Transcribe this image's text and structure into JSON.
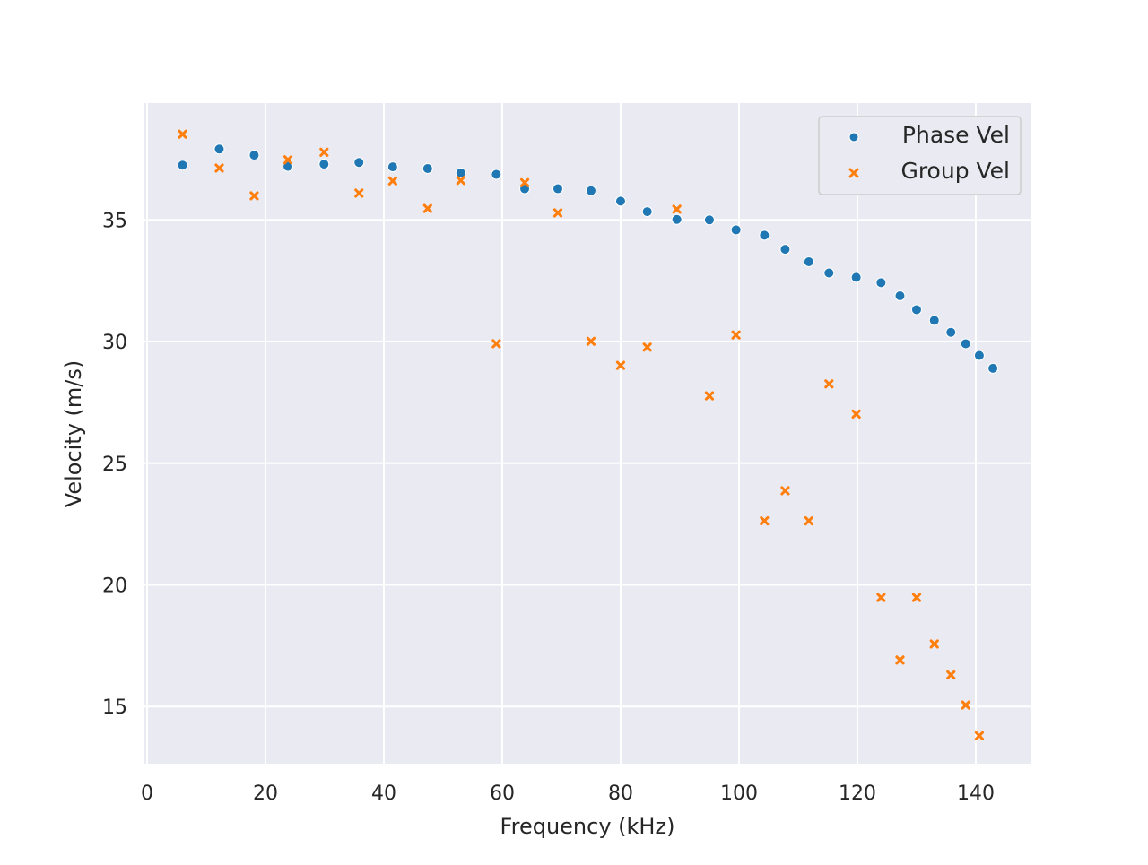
{
  "chart_data": {
    "type": "scatter",
    "title": "",
    "xlabel": "Frequency (kHz)",
    "ylabel": "Velocity (m/s)",
    "xlim": [
      -0.6,
      149.4
    ],
    "ylim": [
      12.65,
      39.8
    ],
    "xticks": [
      0,
      20,
      40,
      60,
      80,
      100,
      120,
      140
    ],
    "yticks": [
      15,
      20,
      25,
      30,
      35
    ],
    "grid": true,
    "legend_position": "top-right",
    "colors": {
      "background": "#eaeaf2",
      "grid": "#ffffff",
      "phase": "#1f77b4",
      "group": "#ff7f0e"
    },
    "series": [
      {
        "name": "Phase Vel",
        "marker": "circle",
        "color": "#1f77b4",
        "points": [
          [
            6.0,
            37.25
          ],
          [
            12.2,
            37.91
          ],
          [
            18.1,
            37.66
          ],
          [
            23.8,
            37.2
          ],
          [
            29.9,
            37.29
          ],
          [
            35.8,
            37.36
          ],
          [
            41.5,
            37.18
          ],
          [
            47.4,
            37.11
          ],
          [
            53.0,
            36.93
          ],
          [
            59.0,
            36.87
          ],
          [
            63.8,
            36.28
          ],
          [
            69.4,
            36.28
          ],
          [
            75.0,
            36.2
          ],
          [
            80.0,
            35.77
          ],
          [
            84.5,
            35.34
          ],
          [
            89.5,
            35.02
          ],
          [
            95.0,
            35.0
          ],
          [
            99.5,
            34.59
          ],
          [
            104.3,
            34.37
          ],
          [
            107.8,
            33.79
          ],
          [
            111.8,
            33.28
          ],
          [
            115.2,
            32.82
          ],
          [
            119.8,
            32.64
          ],
          [
            124.0,
            32.42
          ],
          [
            127.2,
            31.88
          ],
          [
            130.0,
            31.31
          ],
          [
            133.0,
            30.87
          ],
          [
            135.8,
            30.38
          ],
          [
            138.3,
            29.91
          ],
          [
            140.6,
            29.43
          ],
          [
            142.9,
            28.9
          ]
        ]
      },
      {
        "name": "Group Vel",
        "marker": "x",
        "color": "#ff7f0e",
        "points": [
          [
            6.0,
            38.52
          ],
          [
            12.2,
            37.13
          ],
          [
            18.1,
            35.99
          ],
          [
            23.8,
            37.47
          ],
          [
            29.9,
            37.78
          ],
          [
            35.8,
            36.1
          ],
          [
            41.5,
            36.6
          ],
          [
            47.4,
            35.47
          ],
          [
            53.0,
            36.62
          ],
          [
            59.0,
            29.91
          ],
          [
            63.8,
            36.53
          ],
          [
            69.4,
            35.29
          ],
          [
            75.0,
            30.01
          ],
          [
            80.0,
            29.02
          ],
          [
            84.5,
            29.77
          ],
          [
            89.5,
            35.44
          ],
          [
            95.0,
            27.77
          ],
          [
            99.5,
            30.27
          ],
          [
            104.3,
            22.63
          ],
          [
            107.8,
            23.87
          ],
          [
            111.8,
            22.63
          ],
          [
            115.2,
            28.26
          ],
          [
            119.8,
            27.02
          ],
          [
            124.0,
            19.48
          ],
          [
            127.2,
            16.91
          ],
          [
            130.0,
            19.48
          ],
          [
            133.0,
            17.57
          ],
          [
            135.8,
            16.3
          ],
          [
            138.3,
            15.06
          ],
          [
            140.6,
            13.8
          ]
        ]
      }
    ]
  }
}
